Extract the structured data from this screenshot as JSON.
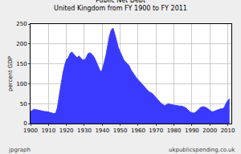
{
  "chart_data": {
    "type": "area",
    "title": "Public Net Debt",
    "subtitle": "United Kingdom from FY 1900 to FY 2011",
    "y_label": "percent GDP",
    "annotations": [
      "jpgraph",
      "ukpublicspending.co.uk"
    ],
    "color": "#3a3aff",
    "grid": true,
    "x": [
      1900,
      1901,
      1902,
      1903,
      1904,
      1905,
      1906,
      1907,
      1908,
      1909,
      1910,
      1911,
      1912,
      1913,
      1914,
      1915,
      1916,
      1917,
      1918,
      1919,
      1920,
      1921,
      1922,
      1923,
      1924,
      1925,
      1926,
      1927,
      1928,
      1929,
      1930,
      1931,
      1932,
      1933,
      1934,
      1935,
      1936,
      1937,
      1938,
      1939,
      1940,
      1941,
      1942,
      1943,
      1944,
      1945,
      1946,
      1947,
      1948,
      1949,
      1950,
      1951,
      1952,
      1953,
      1954,
      1955,
      1956,
      1957,
      1958,
      1959,
      1960,
      1961,
      1962,
      1963,
      1964,
      1965,
      1966,
      1967,
      1968,
      1969,
      1970,
      1971,
      1972,
      1973,
      1974,
      1975,
      1976,
      1977,
      1978,
      1979,
      1980,
      1981,
      1982,
      1983,
      1984,
      1985,
      1986,
      1987,
      1988,
      1989,
      1990,
      1991,
      1992,
      1993,
      1994,
      1995,
      1996,
      1997,
      1998,
      1999,
      2000,
      2001,
      2002,
      2003,
      2004,
      2005,
      2006,
      2007,
      2008,
      2009,
      2010,
      2011
    ],
    "values": [
      30,
      33,
      36,
      35,
      34,
      33,
      31,
      30,
      30,
      30,
      29,
      27,
      26,
      25,
      26,
      40,
      70,
      100,
      125,
      145,
      160,
      165,
      175,
      180,
      175,
      170,
      165,
      170,
      165,
      160,
      160,
      165,
      175,
      178,
      175,
      170,
      162,
      150,
      140,
      130,
      135,
      150,
      170,
      195,
      220,
      235,
      240,
      225,
      205,
      190,
      180,
      170,
      160,
      155,
      150,
      145,
      135,
      128,
      120,
      115,
      110,
      105,
      100,
      97,
      90,
      85,
      80,
      78,
      75,
      70,
      65,
      58,
      55,
      50,
      47,
      45,
      48,
      50,
      48,
      47,
      46,
      46,
      45,
      44,
      44,
      43,
      41,
      38,
      33,
      29,
      27,
      26,
      28,
      33,
      38,
      41,
      42,
      42,
      40,
      37,
      34,
      30,
      30,
      32,
      34,
      36,
      37,
      37,
      40,
      50,
      58,
      62
    ],
    "xlim": [
      1900,
      2012
    ],
    "xticks": [
      1900,
      1910,
      1920,
      1930,
      1940,
      1950,
      1960,
      1970,
      1980,
      1990,
      2000,
      2010
    ],
    "ylim": [
      0,
      250
    ],
    "yticks": [
      0,
      50,
      100,
      150,
      200,
      250
    ]
  }
}
